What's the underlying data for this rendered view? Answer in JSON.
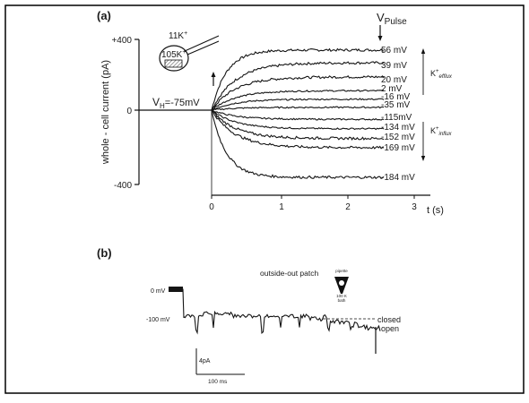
{
  "figure": {
    "panel_a_label": "(a)",
    "panel_b_label": "(b)"
  },
  "panel_a": {
    "ylabel": "whole - cell current  (pA)",
    "xlabel": "t (s)",
    "y_ticks": [
      "+400",
      "0",
      "-400"
    ],
    "x_ticks": [
      "0",
      "1",
      "2",
      "3"
    ],
    "holding_potential": "V",
    "holding_sub": "H",
    "holding_value": "=-75mV",
    "pulse_label": "V",
    "pulse_sub": "Pulse",
    "inset_ext": "11K",
    "inset_int": "105K",
    "inset_sup": "+",
    "efflux_label": "K",
    "efflux_sub": "efflux",
    "influx_label": "K",
    "influx_sub": "influx",
    "colors": {
      "ink": "#1a1a1a",
      "frame": "#000000",
      "background": "#ffffff"
    }
  },
  "chart_data": [
    {
      "type": "line",
      "title": "",
      "xlabel": "t (s)",
      "ylabel": "whole - cell current  (pA)",
      "xlim": [
        0,
        3
      ],
      "ylim": [
        -400,
        400
      ],
      "grid": false,
      "series": [
        {
          "name": "56 mV",
          "x": [
            0,
            0.5,
            1,
            1.5,
            2,
            2.5
          ],
          "y": [
            0,
            280,
            330,
            340,
            340,
            340
          ]
        },
        {
          "name": "39 mV",
          "x": [
            0,
            0.5,
            1,
            1.5,
            2,
            2.5
          ],
          "y": [
            0,
            210,
            255,
            265,
            268,
            268
          ]
        },
        {
          "name": "20 mV",
          "x": [
            0,
            0.5,
            1,
            1.5,
            2,
            2.5
          ],
          "y": [
            0,
            140,
            175,
            185,
            188,
            188
          ]
        },
        {
          "name": "2 mV",
          "x": [
            0,
            0.5,
            1,
            1.5,
            2,
            2.5
          ],
          "y": [
            0,
            75,
            100,
            108,
            110,
            110
          ]
        },
        {
          "name": "-16 mV",
          "x": [
            0,
            0.5,
            1,
            1.5,
            2,
            2.5
          ],
          "y": [
            0,
            40,
            55,
            60,
            62,
            62
          ]
        },
        {
          "name": "-35 mV",
          "x": [
            0,
            0.5,
            1,
            1.5,
            2,
            2.5
          ],
          "y": [
            0,
            10,
            14,
            15,
            16,
            16
          ]
        },
        {
          "name": "-115 mV",
          "x": [
            0,
            0.5,
            1,
            1.5,
            2,
            2.5
          ],
          "y": [
            0,
            -35,
            -45,
            -50,
            -52,
            -52
          ]
        },
        {
          "name": "-134 mV",
          "x": [
            0,
            0.5,
            1,
            1.5,
            2,
            2.5
          ],
          "y": [
            0,
            -75,
            -95,
            -102,
            -105,
            -105
          ]
        },
        {
          "name": "-152 mV",
          "x": [
            0,
            0.5,
            1,
            1.5,
            2,
            2.5
          ],
          "y": [
            0,
            -125,
            -150,
            -157,
            -160,
            -160
          ]
        },
        {
          "name": "-169 mV",
          "x": [
            0,
            0.5,
            1,
            1.5,
            2,
            2.5
          ],
          "y": [
            0,
            -170,
            -200,
            -210,
            -212,
            -212
          ]
        },
        {
          "name": "-184 mV",
          "x": [
            0,
            0.5,
            1,
            1.5,
            2,
            2.5
          ],
          "y": [
            0,
            -330,
            -380,
            -380,
            -380,
            -380
          ]
        }
      ]
    }
  ],
  "series_labels": [
    "56 mV",
    "39 mV",
    "20 mV",
    "2  mV",
    "-16 mV",
    "-35 mV",
    "-115mV",
    "-134 mV",
    "-152 mV",
    "-169 mV",
    "-184 mV"
  ],
  "panel_b": {
    "title": "outside-out patch",
    "pipette_label": "pipette",
    "pipette_value": "11 K",
    "bath_value": "100 K",
    "bath_label": "bath",
    "level_0mv": "0 mV",
    "level_100mv": "-100 mV",
    "closed_label": "closed",
    "open_label": "open",
    "scale_current": "4pA",
    "scale_time": "100 ms"
  }
}
